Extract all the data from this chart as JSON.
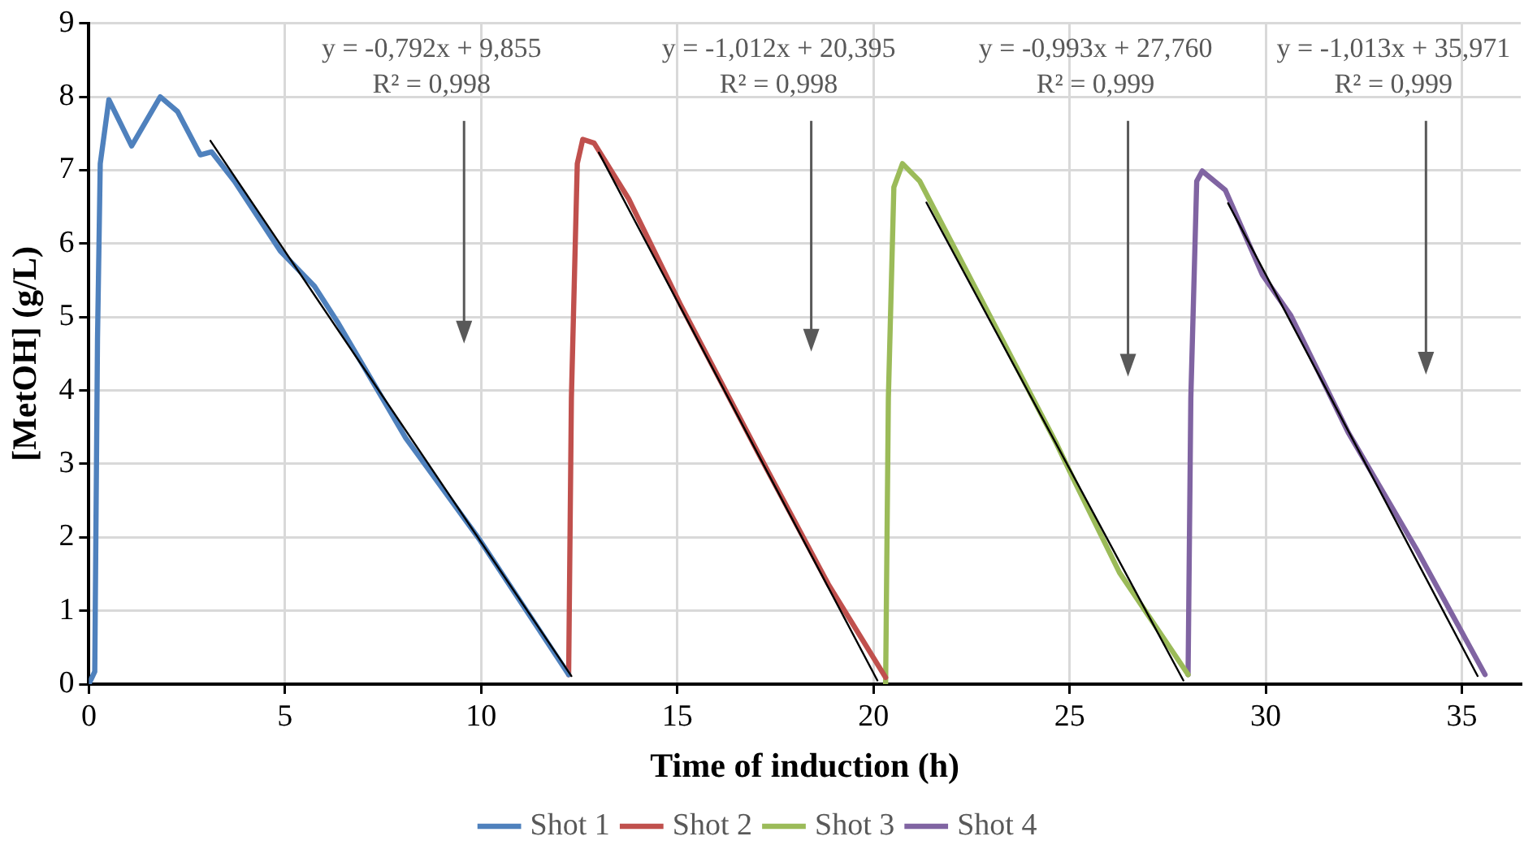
{
  "chart_data": {
    "type": "line",
    "xlabel": "Time of induction (h)",
    "ylabel": "[MetOH] (g/L)",
    "xlim": [
      0,
      36.5
    ],
    "xticks": [
      0,
      5,
      10,
      15,
      20,
      25,
      30,
      35
    ],
    "ylim": [
      0,
      9
    ],
    "yticks": [
      0,
      1,
      2,
      3,
      4,
      5,
      6,
      7,
      8,
      9
    ],
    "grid": true,
    "legend": "bottom",
    "marker": "none",
    "series": [
      {
        "name": "Shot 1",
        "color": "#4f81bd",
        "x": [
          0,
          0.15,
          0.22,
          0.29,
          0.51,
          1.09,
          1.82,
          2.26,
          2.84,
          3.13,
          3.71,
          4.88,
          5.75,
          6.33,
          8.08,
          9.97,
          12.23
        ],
        "values": [
          0,
          0.17,
          4.7,
          7.09,
          7.96,
          7.33,
          8.0,
          7.8,
          7.21,
          7.25,
          6.85,
          5.9,
          5.42,
          4.94,
          3.35,
          1.96,
          0.13
        ]
      },
      {
        "name": "Shot 2",
        "color": "#c0504d",
        "x": [
          12.23,
          12.3,
          12.45,
          12.59,
          12.88,
          13.76,
          15.07,
          17.1,
          18.85,
          20.31
        ],
        "values": [
          0.13,
          3.9,
          7.09,
          7.42,
          7.37,
          6.61,
          5.18,
          3.11,
          1.36,
          0.09
        ]
      },
      {
        "name": "Shot 3",
        "color": "#9bbb59",
        "x": [
          20.31,
          20.38,
          20.52,
          20.74,
          21.18,
          24.67,
          25.1,
          26.27,
          28.02
        ],
        "values": [
          0,
          3.9,
          6.77,
          7.09,
          6.85,
          3.27,
          2.79,
          1.52,
          0.13
        ]
      },
      {
        "name": "Shot 4",
        "color": "#8064a2",
        "x": [
          28.02,
          28.09,
          28.24,
          28.38,
          28.97,
          29.91,
          30.64,
          32.1,
          33.84,
          35.59
        ],
        "values": [
          0.13,
          3.9,
          6.85,
          6.99,
          6.73,
          5.58,
          5.02,
          3.43,
          1.84,
          0.13
        ]
      },
      {
        "type": "line",
        "color": "#000000",
        "x": [
          3.1,
          12.3
        ],
        "values": [
          7.4,
          0.11
        ]
      },
      {
        "type": "line",
        "color": "#000000",
        "x": [
          13.0,
          20.1
        ],
        "values": [
          7.24,
          0.05
        ]
      },
      {
        "type": "line",
        "color": "#000000",
        "x": [
          21.35,
          27.9
        ],
        "values": [
          6.56,
          0.05
        ]
      },
      {
        "type": "line",
        "color": "#000000",
        "x": [
          29.04,
          35.4
        ],
        "values": [
          6.55,
          0.11
        ]
      }
    ],
    "annotations": [
      "y = -0,792x + 9,855\nR² = 0,998",
      "y = -1,012x + 20,395\nR² = 0,998",
      "y = -0,993x + 27,760\nR² = 0,999",
      "y = -1,013x + 35,971\nR² = 0,999"
    ]
  }
}
